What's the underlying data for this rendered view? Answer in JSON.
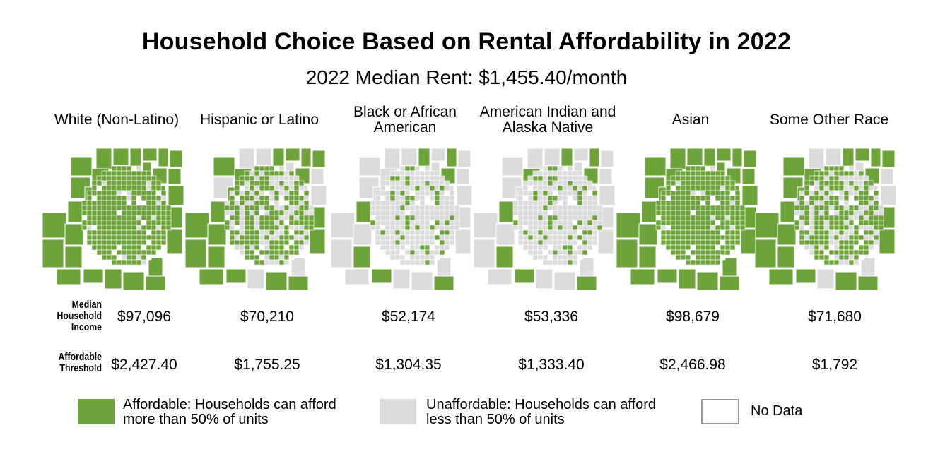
{
  "title": "Household Choice Based on Rental Affordability in 2022",
  "subtitle": "2022 Median Rent: $1,455.40/month",
  "colors": {
    "affordable": "#6ea23a",
    "unaffordable": "#dcdcdc",
    "no_data": "#ffffff",
    "border": "#ffffff",
    "nodata_border": "#9a9a9a"
  },
  "row_labels": {
    "income": "Median Household Income",
    "threshold": "Affordable Threshold"
  },
  "groups": [
    {
      "name": "White (Non-Latino)",
      "income": "$97,096",
      "threshold": "$2,427.40",
      "affordable_share": 0.95
    },
    {
      "name": "Hispanic or Latino",
      "income": "$70,210",
      "threshold": "$1,755.25",
      "affordable_share": 0.62
    },
    {
      "name": "Black or African American",
      "income": "$52,174",
      "threshold": "$1,304.35",
      "affordable_share": 0.22
    },
    {
      "name": "American Indian and Alaska Native",
      "income": "$53,336",
      "threshold": "$1,333.40",
      "affordable_share": 0.24
    },
    {
      "name": "Asian",
      "income": "$98,679",
      "threshold": "$2,466.98",
      "affordable_share": 0.96
    },
    {
      "name": "Some Other Race",
      "income": "$71,680",
      "threshold": "$1,792",
      "affordable_share": 0.64
    }
  ],
  "legend": [
    {
      "key": "affordable",
      "label_line1": "Affordable: Households can afford",
      "label_line2": "more than 50% of units"
    },
    {
      "key": "unaffordable",
      "label_line1": "Unaffordable: Households can afford",
      "label_line2": "less than 50% of units"
    },
    {
      "key": "no_data",
      "label_line1": "No Data",
      "label_line2": ""
    }
  ]
}
